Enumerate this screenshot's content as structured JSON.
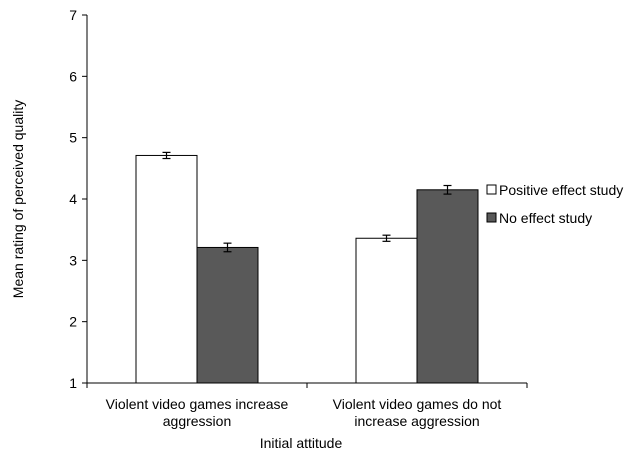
{
  "chart_data": {
    "type": "bar",
    "title": "",
    "xlabel": "Initial attitude",
    "ylabel": "Mean rating of perceived quality",
    "ylim": [
      1,
      7
    ],
    "yticks": [
      "1",
      "2",
      "3",
      "4",
      "5",
      "6",
      "7"
    ],
    "grid": false,
    "legend_position": "right",
    "categories": [
      [
        "Violent video games increase",
        "aggression"
      ],
      [
        "Violent video games do not",
        "increase aggression"
      ]
    ],
    "series": [
      {
        "name": "Positive effect study",
        "color": "#ffffff",
        "values": [
          4.71,
          3.36
        ],
        "errors": [
          0.05,
          0.05
        ]
      },
      {
        "name": "No effect study",
        "color": "#595959",
        "values": [
          3.21,
          4.15
        ],
        "errors": [
          0.07,
          0.07
        ]
      }
    ]
  }
}
